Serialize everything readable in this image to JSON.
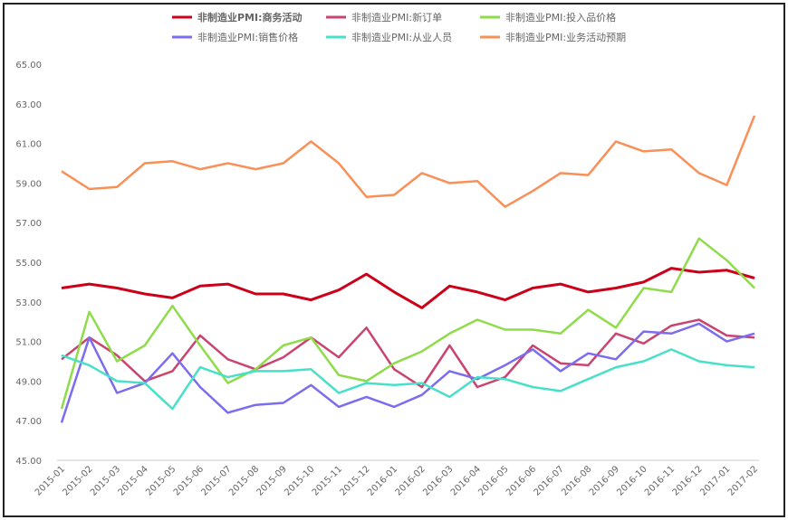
{
  "chart_data": {
    "type": "line",
    "title": "",
    "xlabel": "",
    "ylabel": "",
    "ylim": [
      45,
      65
    ],
    "yticks": [
      "45.00",
      "47.00",
      "49.00",
      "51.00",
      "53.00",
      "55.00",
      "57.00",
      "59.00",
      "61.00",
      "63.00",
      "65.00"
    ],
    "legend_position": "top",
    "x": [
      "2015-01",
      "2015-02",
      "2015-03",
      "2015-04",
      "2015-05",
      "2015-06",
      "2015-07",
      "2015-08",
      "2015-09",
      "2015-10",
      "2015-11",
      "2015-12",
      "2016-01",
      "2016-02",
      "2016-03",
      "2016-04",
      "2016-05",
      "2016-06",
      "2016-07",
      "2016-08",
      "2016-09",
      "2016-10",
      "2016-11",
      "2016-12",
      "2017-01",
      "2017-02"
    ],
    "series": [
      {
        "name": "非制造业PMI:商务活动",
        "color": "#cc0018",
        "bold": true,
        "values": [
          53.7,
          53.9,
          53.7,
          53.4,
          53.2,
          53.8,
          53.9,
          53.4,
          53.4,
          53.1,
          53.6,
          54.4,
          53.5,
          52.7,
          53.8,
          53.5,
          53.1,
          53.7,
          53.9,
          53.5,
          53.7,
          54.0,
          54.7,
          54.5,
          54.6,
          54.2
        ]
      },
      {
        "name": "非制造业PMI:新订单",
        "color": "#c9446e",
        "values": [
          50.1,
          51.2,
          50.3,
          49.0,
          49.5,
          51.3,
          50.1,
          49.6,
          50.2,
          51.2,
          50.2,
          51.7,
          49.6,
          48.7,
          50.8,
          48.7,
          49.2,
          50.8,
          49.9,
          49.8,
          51.4,
          50.9,
          51.8,
          52.1,
          51.3,
          51.2
        ]
      },
      {
        "name": "非制造业PMI:投入品价格",
        "color": "#8fdc4a",
        "values": [
          47.6,
          52.5,
          50.0,
          50.8,
          52.8,
          50.8,
          48.9,
          49.6,
          50.8,
          51.2,
          49.3,
          49.0,
          49.9,
          50.5,
          51.4,
          52.1,
          51.6,
          51.6,
          51.4,
          52.6,
          51.7,
          53.7,
          53.5,
          56.2,
          55.1,
          53.7
        ]
      },
      {
        "name": "非制造业PMI:销售价格",
        "color": "#7b6cf0",
        "values": [
          46.9,
          51.2,
          48.4,
          48.9,
          50.4,
          48.7,
          47.4,
          47.8,
          47.9,
          48.8,
          47.7,
          48.2,
          47.7,
          48.3,
          49.5,
          49.1,
          49.8,
          50.6,
          49.5,
          50.4,
          50.1,
          51.5,
          51.4,
          51.9,
          51.0,
          51.4
        ]
      },
      {
        "name": "非制造业PMI:从业人员",
        "color": "#48e0c8",
        "values": [
          50.3,
          49.8,
          49.0,
          48.9,
          47.6,
          49.7,
          49.2,
          49.5,
          49.5,
          49.6,
          48.4,
          48.9,
          48.8,
          48.9,
          48.2,
          49.2,
          49.1,
          48.7,
          48.5,
          49.1,
          49.7,
          50.0,
          50.6,
          50.0,
          49.8,
          49.7
        ]
      },
      {
        "name": "非制造业PMI:业务活动预期",
        "color": "#f89058",
        "values": [
          59.6,
          58.7,
          58.8,
          60.0,
          60.1,
          59.7,
          60.0,
          59.7,
          60.0,
          61.1,
          60.0,
          58.3,
          58.4,
          59.5,
          59.0,
          59.1,
          57.8,
          58.6,
          59.5,
          59.4,
          61.1,
          60.6,
          60.7,
          59.5,
          58.9,
          62.4
        ]
      }
    ]
  }
}
